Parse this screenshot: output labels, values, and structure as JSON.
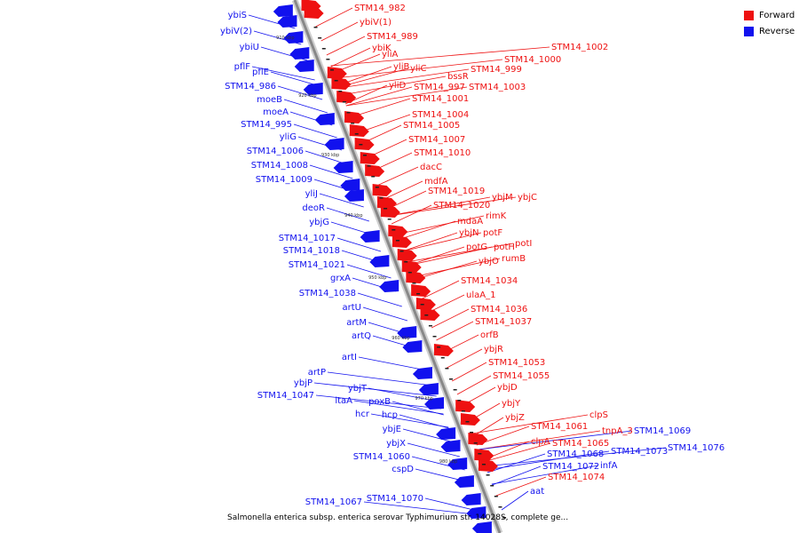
{
  "legend": {
    "items": [
      {
        "label": "Forward",
        "color": "#ee1111"
      },
      {
        "label": "Reverse",
        "color": "#1111ee"
      }
    ]
  },
  "caption": "Salmonella enterica subsp. enterica serovar Typhimurium str. 14028S, complete ge...",
  "colors": {
    "forward": "#ee1111",
    "reverse": "#1111ee",
    "axis": "#888888"
  },
  "scale_ticks": [
    "910 kbp",
    "920 kbp",
    "930 kbp",
    "940 kbp",
    "950 kbp",
    "960 kbp",
    "970 kbp",
    "980 kbp"
  ],
  "forward_genes": [
    "STM14_982",
    "ybiV(1)",
    "STM14_989",
    "ybiK",
    "yliA",
    "yliB",
    "yliC",
    "yliD",
    "STM14_1002",
    "STM14_1000",
    "STM14_999",
    "bssR",
    "STM14_997",
    "STM14_1003",
    "STM14_1001",
    "STM14_1004",
    "STM14_1005",
    "STM14_1007",
    "STM14_1010",
    "dacC",
    "mdfA",
    "STM14_1019",
    "STM14_1020",
    "ybjM",
    "ybjC",
    "mdaA",
    "rimK",
    "ybjN",
    "potF",
    "potG",
    "potH",
    "potI",
    "ybjO",
    "rumB",
    "STM14_1034",
    "ulaA_1",
    "STM14_1036",
    "STM14_1037",
    "orfB",
    "ybjR",
    "STM14_1053",
    "STM14_1055",
    "ybjD",
    "ybjY",
    "ybjZ",
    "clpS",
    "STM14_1061",
    "tnpA_3",
    "clpA",
    "STM14_1065",
    "STM14_1074"
  ],
  "reverse_genes": [
    "ybiS",
    "ybiV(2)",
    "ybiU",
    "pflF",
    "pflE",
    "STM14_986",
    "moeB",
    "moeA",
    "STM14_995",
    "yliG",
    "STM14_1006",
    "STM14_1008",
    "STM14_1009",
    "yliJ",
    "deoR",
    "ybjG",
    "STM14_1017",
    "STM14_1018",
    "STM14_1021",
    "grxA",
    "STM14_1038",
    "artU",
    "artM",
    "artQ",
    "artI",
    "artP",
    "ybjP",
    "STM14_1047",
    "ybjT",
    "ltaA",
    "poxB",
    "hcr",
    "hcp",
    "ybjE",
    "ybjX",
    "STM14_1060",
    "cspD",
    "STM14_1069",
    "STM14_1076",
    "STM14_1073",
    "STM14_1068",
    "STM14_1072",
    "infA",
    "aat",
    "STM14_1067",
    "STM14_1070"
  ]
}
